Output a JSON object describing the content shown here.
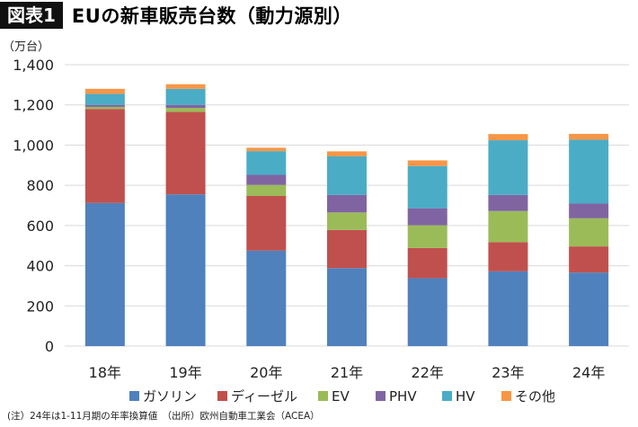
{
  "header": {
    "badge": "図表1",
    "title": "EUの新車販売台数（動力源別）"
  },
  "footnote": "(注）24年は1-11月期の年率換算値　（出所）欧州自動車工業会（ACEA）",
  "chart_data": {
    "type": "bar",
    "stacked": true,
    "unit_label": "（万台）",
    "categories": [
      "18年",
      "19年",
      "20年",
      "21年",
      "22年",
      "23年",
      "24年"
    ],
    "ylim": [
      0,
      1400
    ],
    "yticks": [
      0,
      200,
      400,
      600,
      800,
      1000,
      1200,
      1400
    ],
    "ytick_labels": [
      "0",
      "200",
      "400",
      "600",
      "800",
      "1,000",
      "1,200",
      "1,400"
    ],
    "grid": true,
    "legend_position": "bottom",
    "series": [
      {
        "name": "ガソリン",
        "color": "#4F81BD",
        "values": [
          712,
          755,
          475,
          388,
          338,
          372,
          366
        ]
      },
      {
        "name": "ディーゼル",
        "color": "#C0504D",
        "values": [
          468,
          410,
          272,
          190,
          150,
          145,
          130
        ]
      },
      {
        "name": "EV",
        "color": "#9BBB59",
        "values": [
          10,
          20,
          55,
          87,
          113,
          155,
          140
        ]
      },
      {
        "name": "PHV",
        "color": "#8064A2",
        "values": [
          10,
          15,
          50,
          87,
          85,
          80,
          73
        ]
      },
      {
        "name": "HV",
        "color": "#4BACC6",
        "values": [
          55,
          80,
          118,
          192,
          210,
          272,
          318
        ]
      },
      {
        "name": "その他",
        "color": "#F79646",
        "values": [
          25,
          23,
          17,
          25,
          28,
          31,
          29
        ]
      }
    ]
  }
}
